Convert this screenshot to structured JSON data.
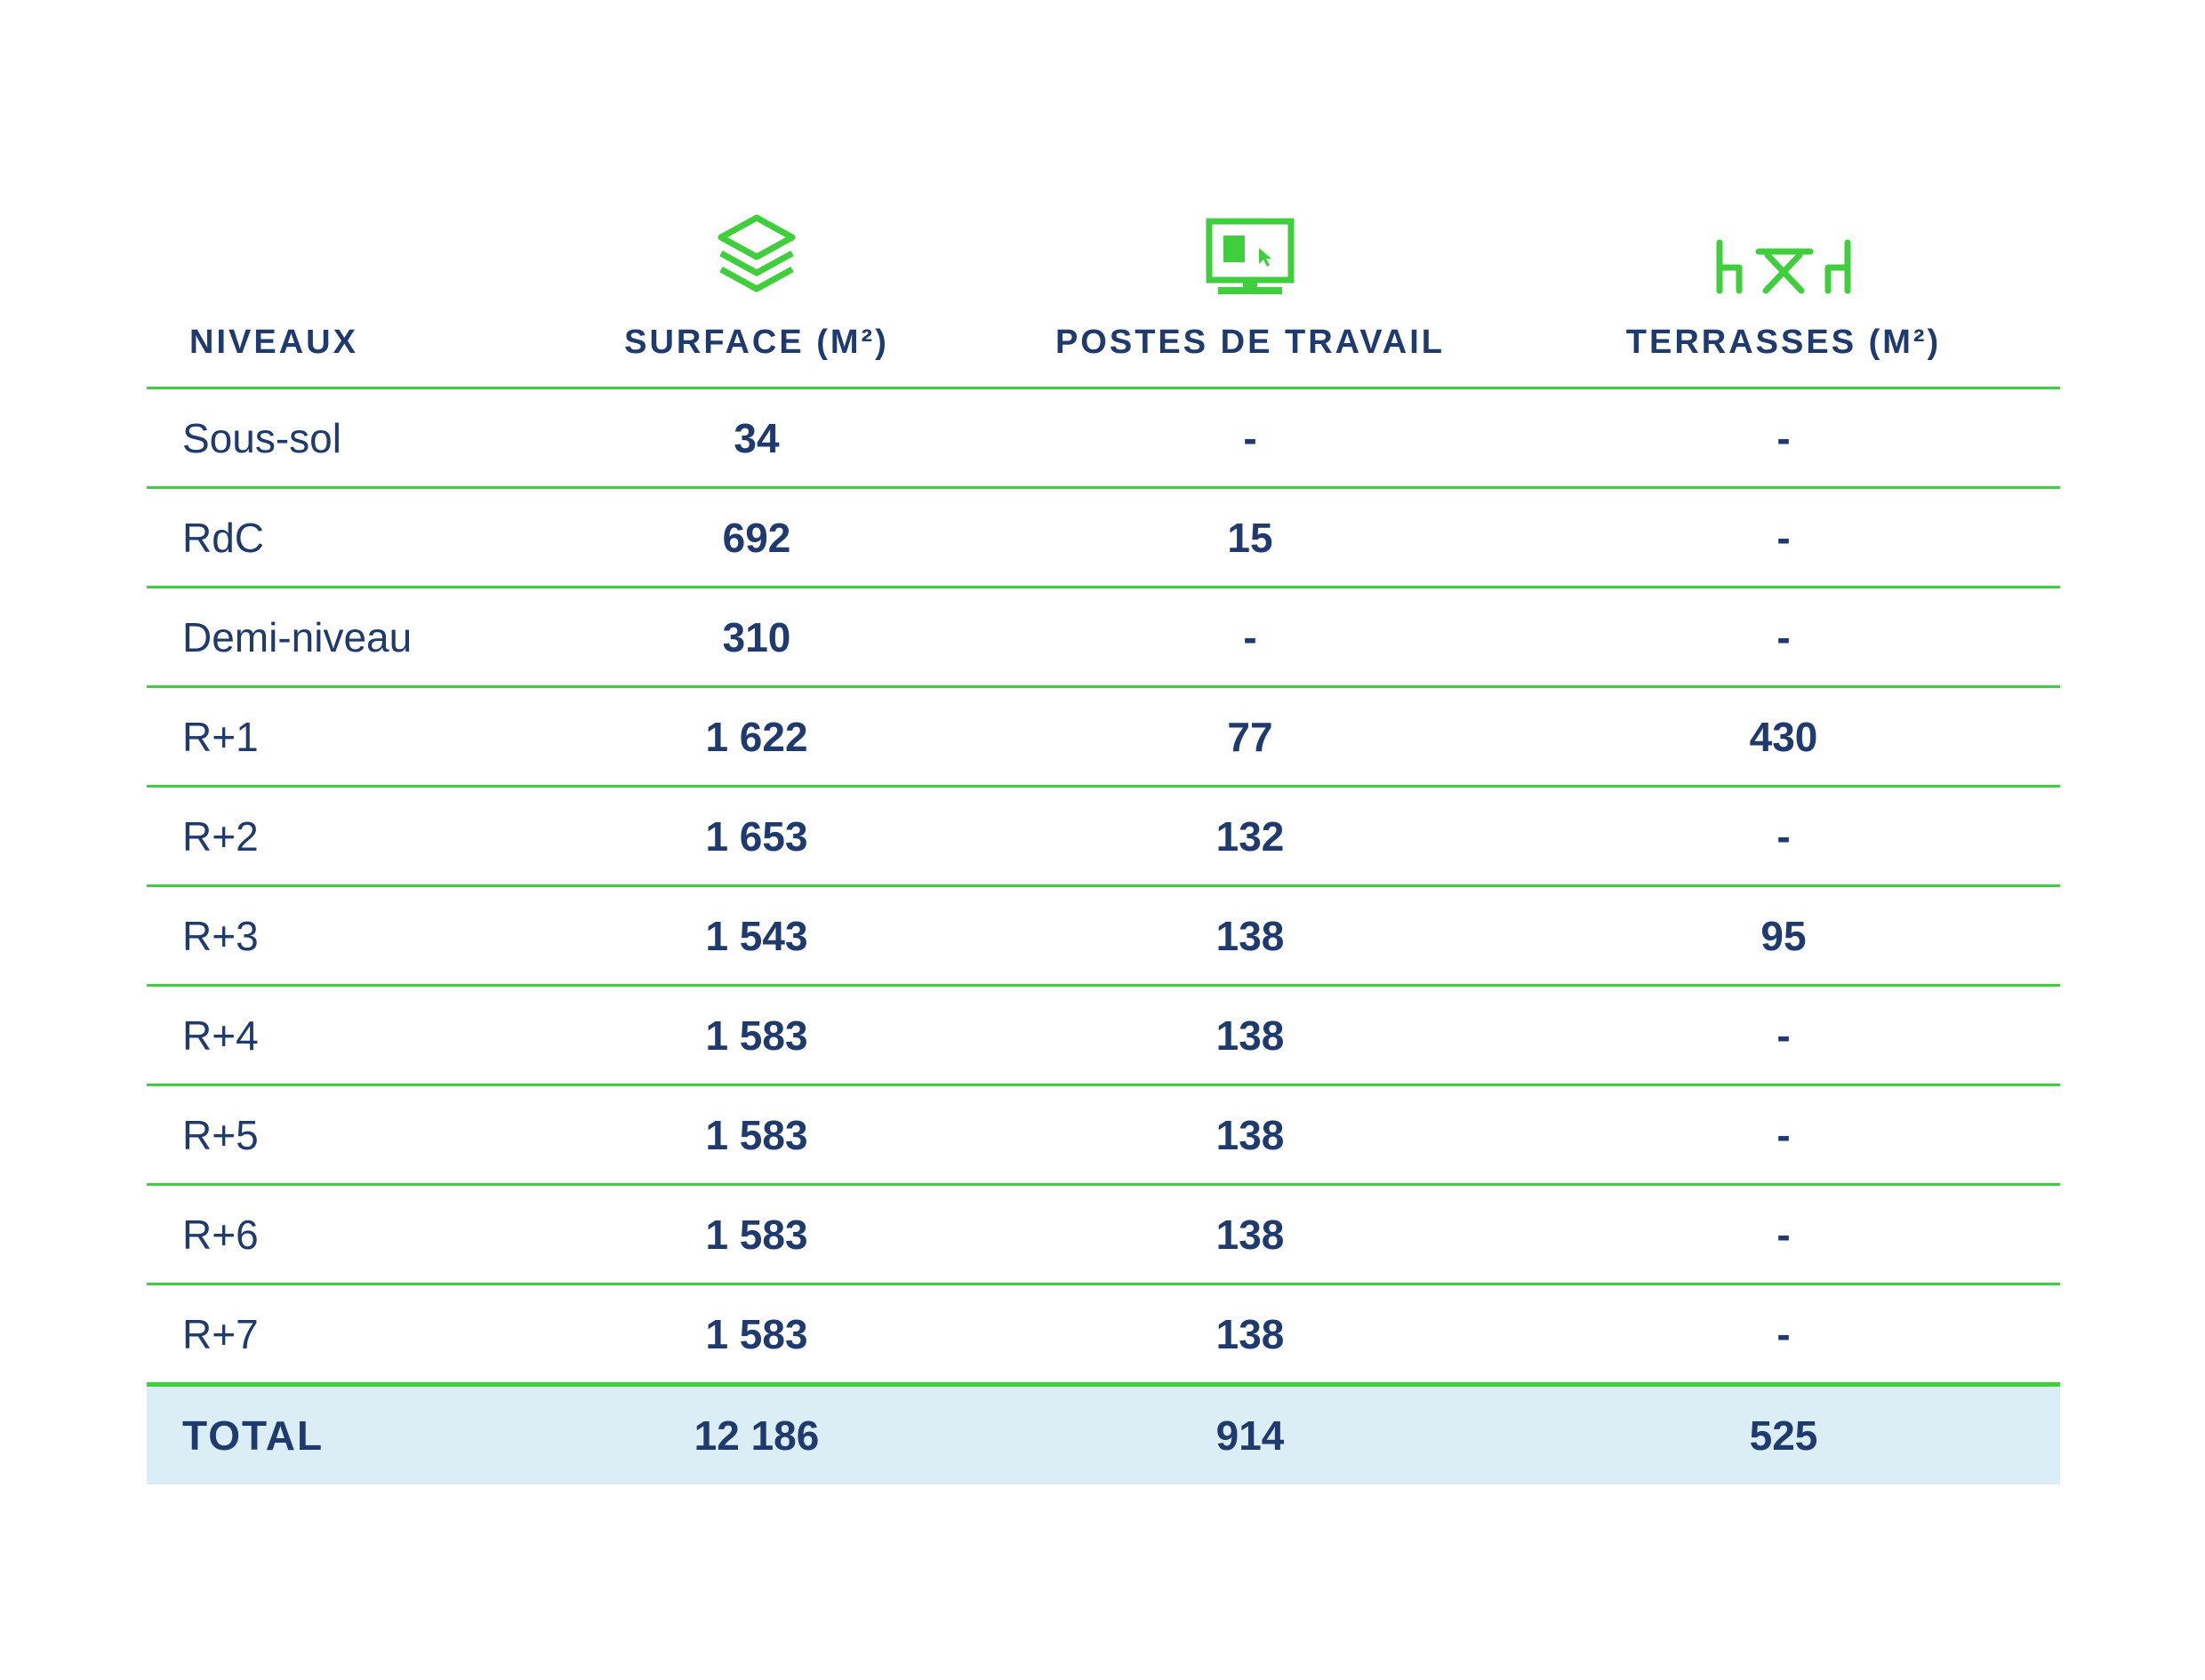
{
  "columns": {
    "niveaux": "NIVEAUX",
    "surface": "SURFACE (M²)",
    "postes": "POSTES DE TRAVAIL",
    "terrasses": "TERRASSES (M²)"
  },
  "icons": {
    "surface": "layers-icon",
    "postes": "monitor-workstation-icon",
    "terrasses": "terrace-table-chairs-icon",
    "color": "#3fcf3c"
  },
  "rows": [
    {
      "niveau": "Sous-sol",
      "surface": "34",
      "postes": "-",
      "terrasses": "-"
    },
    {
      "niveau": "RdC",
      "surface": "692",
      "postes": "15",
      "terrasses": "-"
    },
    {
      "niveau": "Demi-niveau",
      "surface": "310",
      "postes": "-",
      "terrasses": "-"
    },
    {
      "niveau": "R+1",
      "surface": "1 622",
      "postes": "77",
      "terrasses": "430"
    },
    {
      "niveau": "R+2",
      "surface": "1 653",
      "postes": "132",
      "terrasses": "-"
    },
    {
      "niveau": "R+3",
      "surface": "1 543",
      "postes": "138",
      "terrasses": "95"
    },
    {
      "niveau": "R+4",
      "surface": "1 583",
      "postes": "138",
      "terrasses": "-"
    },
    {
      "niveau": "R+5",
      "surface": "1 583",
      "postes": "138",
      "terrasses": "-"
    },
    {
      "niveau": "R+6",
      "surface": "1 583",
      "postes": "138",
      "terrasses": "-"
    },
    {
      "niveau": "R+7",
      "surface": "1 583",
      "postes": "138",
      "terrasses": "-"
    }
  ],
  "total": {
    "label": "TOTAL",
    "surface": "12 186",
    "postes": "914",
    "terrasses": "525"
  },
  "colors": {
    "text": "#1e3a6e",
    "rule": "#3fcf3c",
    "total_bg": "#dceef5"
  }
}
